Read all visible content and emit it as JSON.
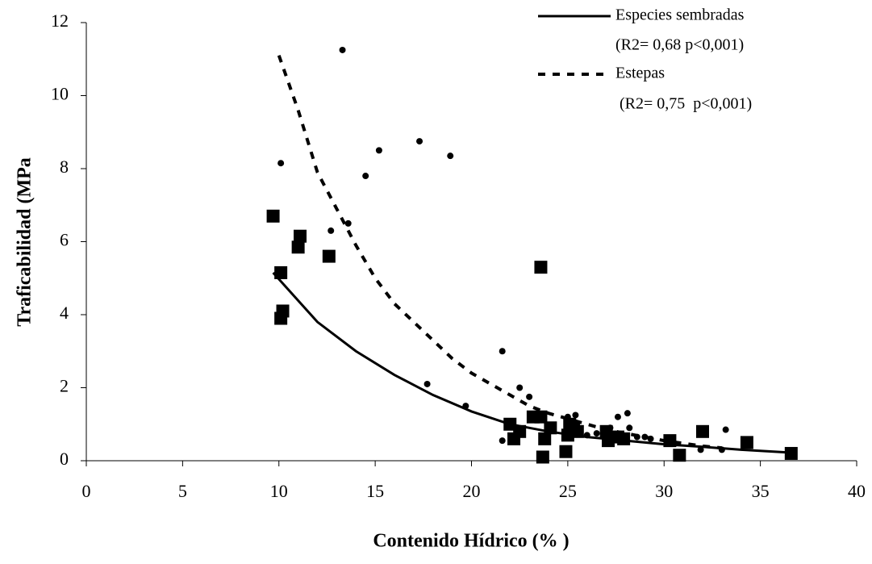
{
  "chart_data": {
    "type": "scatter",
    "xlabel": "Contenido Hídrico (% )",
    "ylabel": "Traficabilidad (MPa",
    "xlim": [
      0,
      40
    ],
    "xticks": [
      0,
      5,
      10,
      15,
      20,
      25,
      30,
      35,
      40
    ],
    "ylim": [
      0,
      12
    ],
    "yticks": [
      0,
      2,
      4,
      6,
      8,
      10,
      12
    ],
    "grid": false,
    "legend": "top-right",
    "series": [
      {
        "name": "Especies sembradas",
        "stat": "(R2= 0,68 p<0,001)",
        "style": "solid",
        "color": "#000000",
        "x": [
          9.7,
          12,
          14,
          16,
          18,
          20,
          22,
          24,
          26,
          28,
          30,
          32,
          34,
          36.6
        ],
        "values": [
          5.15,
          3.8,
          3.0,
          2.35,
          1.8,
          1.35,
          1.0,
          0.8,
          0.65,
          0.55,
          0.45,
          0.38,
          0.3,
          0.22
        ]
      },
      {
        "name": "Estepas",
        "stat": " (R2= 0,75  p<0,001)",
        "style": "dashed",
        "color": "#000000",
        "x": [
          10,
          11,
          12,
          13,
          14,
          15,
          16,
          17,
          18,
          19,
          20,
          21,
          22,
          23,
          24,
          25,
          26,
          27,
          28,
          30,
          32,
          33
        ],
        "values": [
          11.1,
          9.6,
          7.9,
          6.9,
          5.9,
          5.0,
          4.3,
          3.8,
          3.3,
          2.8,
          2.4,
          2.1,
          1.8,
          1.5,
          1.3,
          1.15,
          1.0,
          0.85,
          0.75,
          0.55,
          0.4,
          0.35
        ]
      }
    ],
    "points": [
      {
        "marker": "square",
        "color": "#000000",
        "x": [
          9.7,
          10.1,
          10.2,
          10.1,
          11.0,
          11.1,
          12.6,
          23.6,
          22.0,
          22.2,
          22.5,
          23.2,
          23.6,
          23.7,
          23.8,
          24.1,
          24.9,
          25.0,
          25.1,
          25.3,
          25.5,
          27.0,
          27.1,
          27.6,
          27.9,
          30.3,
          30.8,
          32.0,
          34.3,
          36.6
        ],
        "values": [
          6.7,
          5.15,
          4.1,
          3.9,
          5.85,
          6.15,
          5.6,
          5.3,
          1.0,
          0.6,
          0.8,
          1.2,
          1.2,
          0.1,
          0.6,
          0.9,
          0.25,
          0.7,
          1.0,
          0.9,
          0.8,
          0.8,
          0.55,
          0.65,
          0.6,
          0.55,
          0.15,
          0.8,
          0.5,
          0.2
        ]
      },
      {
        "marker": "circle",
        "color": "#000000",
        "x": [
          10.1,
          13.3,
          12.7,
          13.6,
          14.5,
          15.2,
          17.3,
          18.9,
          17.7,
          19.7,
          21.6,
          21.6,
          22.5,
          23.0,
          25.0,
          25.4,
          26.0,
          26.5,
          27.2,
          27.6,
          28.1,
          28.2,
          28.6,
          29.0,
          29.3,
          33.2,
          31.9,
          33.0
        ],
        "values": [
          8.15,
          11.25,
          6.3,
          6.5,
          7.8,
          8.5,
          8.75,
          8.35,
          2.1,
          1.5,
          3.0,
          0.55,
          2.0,
          1.75,
          1.2,
          1.25,
          0.7,
          0.75,
          0.9,
          1.2,
          1.3,
          0.9,
          0.65,
          0.65,
          0.6,
          0.85,
          0.3,
          0.3
        ]
      }
    ]
  }
}
